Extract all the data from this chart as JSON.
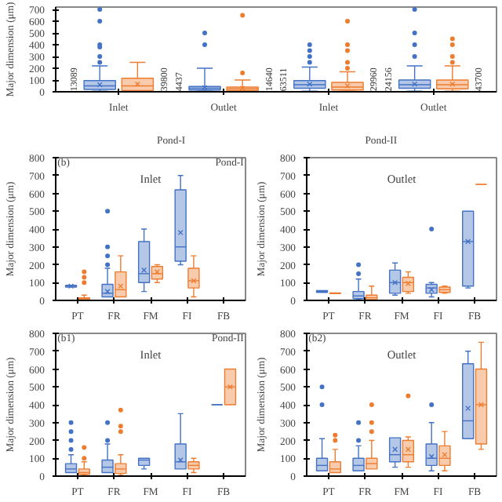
{
  "chart_data": [
    {
      "type": "box",
      "ylabel": "Major dimension (μm)",
      "categories": [
        "Inlet",
        "Outlet",
        "Inlet",
        "Outlet"
      ],
      "ylim": [
        0,
        720
      ],
      "yticks": [
        0,
        100,
        200,
        300,
        400,
        500,
        600,
        700
      ],
      "annotations": [
        "Pond-I",
        "Pond-II"
      ],
      "series": [
        {
          "color": "#4472c4",
          "value_labels": [
            "13089",
            "4437",
            "63511",
            "24156"
          ],
          "boxes": [
            {
              "low": 5,
              "q1": 20,
              "median": 50,
              "q3": 95,
              "high": 220,
              "mean": 60,
              "outliers": [
                250,
                300,
                380,
                400,
                600,
                700
              ]
            },
            {
              "low": 5,
              "q1": 15,
              "median": 30,
              "q3": 45,
              "high": 200,
              "mean": 35,
              "outliers": [
                400,
                500
              ]
            },
            {
              "low": 5,
              "q1": 30,
              "median": 60,
              "q3": 95,
              "high": 210,
              "mean": 65,
              "outliers": [
                250,
                300,
                350,
                400
              ]
            },
            {
              "low": 5,
              "q1": 30,
              "median": 60,
              "q3": 100,
              "high": 220,
              "mean": 65,
              "outliers": [
                300,
                400,
                500,
                700
              ]
            }
          ]
        },
        {
          "color": "#ed7d31",
          "value_labels": [
            "39800",
            "14640",
            "29960",
            "43700"
          ],
          "boxes": [
            {
              "low": 5,
              "q1": 10,
              "median": 50,
              "q3": 115,
              "high": 250,
              "mean": 65
            },
            {
              "low": 5,
              "q1": 10,
              "median": 25,
              "q3": 40,
              "high": 100,
              "mean": 30,
              "outliers": [
                160,
                650
              ]
            },
            {
              "low": 5,
              "q1": 15,
              "median": 40,
              "q3": 80,
              "high": 170,
              "mean": 50,
              "outliers": [
                200,
                250,
                350,
                400,
                600
              ]
            },
            {
              "low": 5,
              "q1": 25,
              "median": 60,
              "q3": 100,
              "high": 220,
              "mean": 65,
              "outliers": [
                250,
                300,
                400,
                450
              ]
            }
          ]
        }
      ]
    },
    {
      "type": "box",
      "title": "Inlet",
      "ylabel": "Major dimension (μm)",
      "categories": [
        "PT",
        "FR",
        "FM",
        "FI",
        "FB"
      ],
      "ylim": [
        0,
        800
      ],
      "yticks": [
        0,
        100,
        200,
        300,
        400,
        500,
        600,
        700,
        800
      ],
      "annotations": [
        "(b)",
        "Pond-I"
      ],
      "series": [
        {
          "color": "#4472c4",
          "boxes": [
            {
              "low": 75,
              "q1": 75,
              "median": 80,
              "q3": 85,
              "high": 85,
              "mean": 80
            },
            {
              "low": 20,
              "q1": 20,
              "median": 40,
              "q3": 90,
              "high": 180,
              "mean": 50,
              "outliers": [
                200,
                250,
                300,
                500
              ]
            },
            {
              "low": 50,
              "q1": 100,
              "median": 150,
              "q3": 330,
              "high": 400,
              "mean": 170
            },
            {
              "low": 200,
              "q1": 220,
              "median": 300,
              "q3": 620,
              "high": 700,
              "mean": 380
            },
            null
          ]
        },
        {
          "color": "#ed7d31",
          "boxes": [
            {
              "low": 0,
              "q1": 5,
              "median": 10,
              "q3": 15,
              "high": 30,
              "outliers": [
                100,
                130,
                160
              ]
            },
            {
              "low": 20,
              "q1": 20,
              "median": 60,
              "q3": 160,
              "high": 250,
              "mean": 80
            },
            {
              "low": 100,
              "q1": 120,
              "median": 150,
              "q3": 190,
              "high": 200,
              "mean": 160
            },
            {
              "low": 20,
              "q1": 70,
              "median": 110,
              "q3": 180,
              "high": 250,
              "mean": 110
            },
            null
          ]
        }
      ]
    },
    {
      "type": "box",
      "title": "Outlet",
      "ylabel": "Major dimension (μm)",
      "categories": [
        "PT",
        "FR",
        "FM",
        "FI",
        "FB"
      ],
      "ylim": [
        0,
        800
      ],
      "yticks": [
        0,
        100,
        200,
        300,
        400,
        500,
        600,
        700,
        800
      ],
      "series": [
        {
          "color": "#4472c4",
          "boxes": [
            {
              "low": 45,
              "q1": 45,
              "median": 50,
              "q3": 55,
              "high": 55
            },
            {
              "low": 5,
              "q1": 10,
              "median": 25,
              "q3": 50,
              "high": 120,
              "outliers": [
                150,
                200
              ]
            },
            {
              "low": 30,
              "q1": 40,
              "median": 100,
              "q3": 170,
              "high": 210,
              "mean": 100
            },
            {
              "low": 20,
              "q1": 40,
              "median": 70,
              "q3": 90,
              "high": 100,
              "mean": 60,
              "outliers": [
                400
              ]
            },
            {
              "low": 70,
              "q1": 80,
              "median": 330,
              "q3": 500,
              "high": 500,
              "mean": 330
            }
          ]
        },
        {
          "color": "#ed7d31",
          "boxes": [
            {
              "low": 38,
              "q1": 38,
              "median": 40,
              "q3": 42,
              "high": 42
            },
            {
              "low": 5,
              "q1": 5,
              "median": 15,
              "q3": 30,
              "high": 80
            },
            {
              "low": 40,
              "q1": 50,
              "median": 100,
              "q3": 130,
              "high": 160,
              "mean": 95
            },
            {
              "low": 40,
              "q1": 45,
              "median": 60,
              "q3": 75,
              "high": 80
            },
            {
              "low": 650,
              "q1": 650,
              "median": 650,
              "q3": 650,
              "high": 650
            }
          ]
        }
      ]
    },
    {
      "type": "box",
      "title": "Inlet",
      "ylabel": "Major dimension (μm)",
      "categories": [
        "PT",
        "FR",
        "FM",
        "FI",
        "FB"
      ],
      "ylim": [
        0,
        800
      ],
      "yticks": [
        0,
        100,
        200,
        300,
        400,
        500,
        600,
        700,
        800
      ],
      "annotations": [
        "(b1)",
        "Pond-II"
      ],
      "series": [
        {
          "color": "#4472c4",
          "boxes": [
            {
              "low": 20,
              "q1": 20,
              "median": 40,
              "q3": 70,
              "high": 120,
              "outliers": [
                150,
                200,
                250,
                300
              ]
            },
            {
              "low": 20,
              "q1": 20,
              "median": 50,
              "q3": 90,
              "high": 180,
              "outliers": [
                200,
                300
              ]
            },
            {
              "low": 40,
              "q1": 60,
              "median": 90,
              "q3": 100,
              "high": 100
            },
            {
              "low": 40,
              "q1": 40,
              "median": 80,
              "q3": 180,
              "high": 350,
              "mean": 90
            },
            {
              "low": 400,
              "q1": 400,
              "median": 400,
              "q3": 400,
              "high": 400
            }
          ]
        },
        {
          "color": "#ed7d31",
          "boxes": [
            {
              "low": 5,
              "q1": 10,
              "median": 20,
              "q3": 40,
              "high": 80,
              "outliers": [
                100,
                160
              ]
            },
            {
              "low": 5,
              "q1": 15,
              "median": 40,
              "q3": 70,
              "high": 120,
              "outliers": [
                250,
                280,
                370
              ]
            },
            null,
            {
              "low": 20,
              "q1": 40,
              "median": 60,
              "q3": 80,
              "high": 100
            },
            {
              "low": 400,
              "q1": 400,
              "median": 500,
              "q3": 600,
              "high": 600,
              "mean": 500
            }
          ]
        }
      ]
    },
    {
      "type": "box",
      "title": "Outlet",
      "ylabel": "Major dimension (μm)",
      "categories": [
        "PT",
        "FR",
        "FM",
        "FI",
        "FB"
      ],
      "ylim": [
        0,
        800
      ],
      "yticks": [
        0,
        100,
        200,
        300,
        400,
        500,
        600,
        700,
        800
      ],
      "annotations": [
        "(b2)"
      ],
      "series": [
        {
          "color": "#4472c4",
          "boxes": [
            {
              "low": 30,
              "q1": 30,
              "median": 60,
              "q3": 100,
              "high": 210,
              "outliers": [
                400,
                500
              ]
            },
            {
              "low": 30,
              "q1": 30,
              "median": 60,
              "q3": 100,
              "high": 170,
              "outliers": [
                200,
                300
              ]
            },
            {
              "low": 50,
              "q1": 80,
              "median": 120,
              "q3": 215,
              "high": 215,
              "mean": 150
            },
            {
              "low": 30,
              "q1": 60,
              "median": 100,
              "q3": 180,
              "high": 300,
              "mean": 110,
              "outliers": [
                400
              ]
            },
            {
              "low": 210,
              "q1": 210,
              "median": 310,
              "q3": 630,
              "high": 700,
              "mean": 380
            }
          ]
        },
        {
          "color": "#ed7d31",
          "boxes": [
            {
              "low": 20,
              "q1": 20,
              "median": 40,
              "q3": 80,
              "high": 150,
              "outliers": [
                200,
                230
              ]
            },
            {
              "low": 40,
              "q1": 40,
              "median": 70,
              "q3": 100,
              "high": 200,
              "outliers": [
                250,
                300,
                400
              ]
            },
            {
              "low": 50,
              "q1": 80,
              "median": 120,
              "q3": 200,
              "high": 220,
              "mean": 150,
              "outliers": [
                450
              ]
            },
            {
              "low": 30,
              "q1": 60,
              "median": 100,
              "q3": 170,
              "high": 250,
              "mean": 120
            },
            {
              "low": 150,
              "q1": 180,
              "median": 400,
              "q3": 600,
              "high": 750,
              "mean": 400
            }
          ]
        }
      ]
    }
  ]
}
